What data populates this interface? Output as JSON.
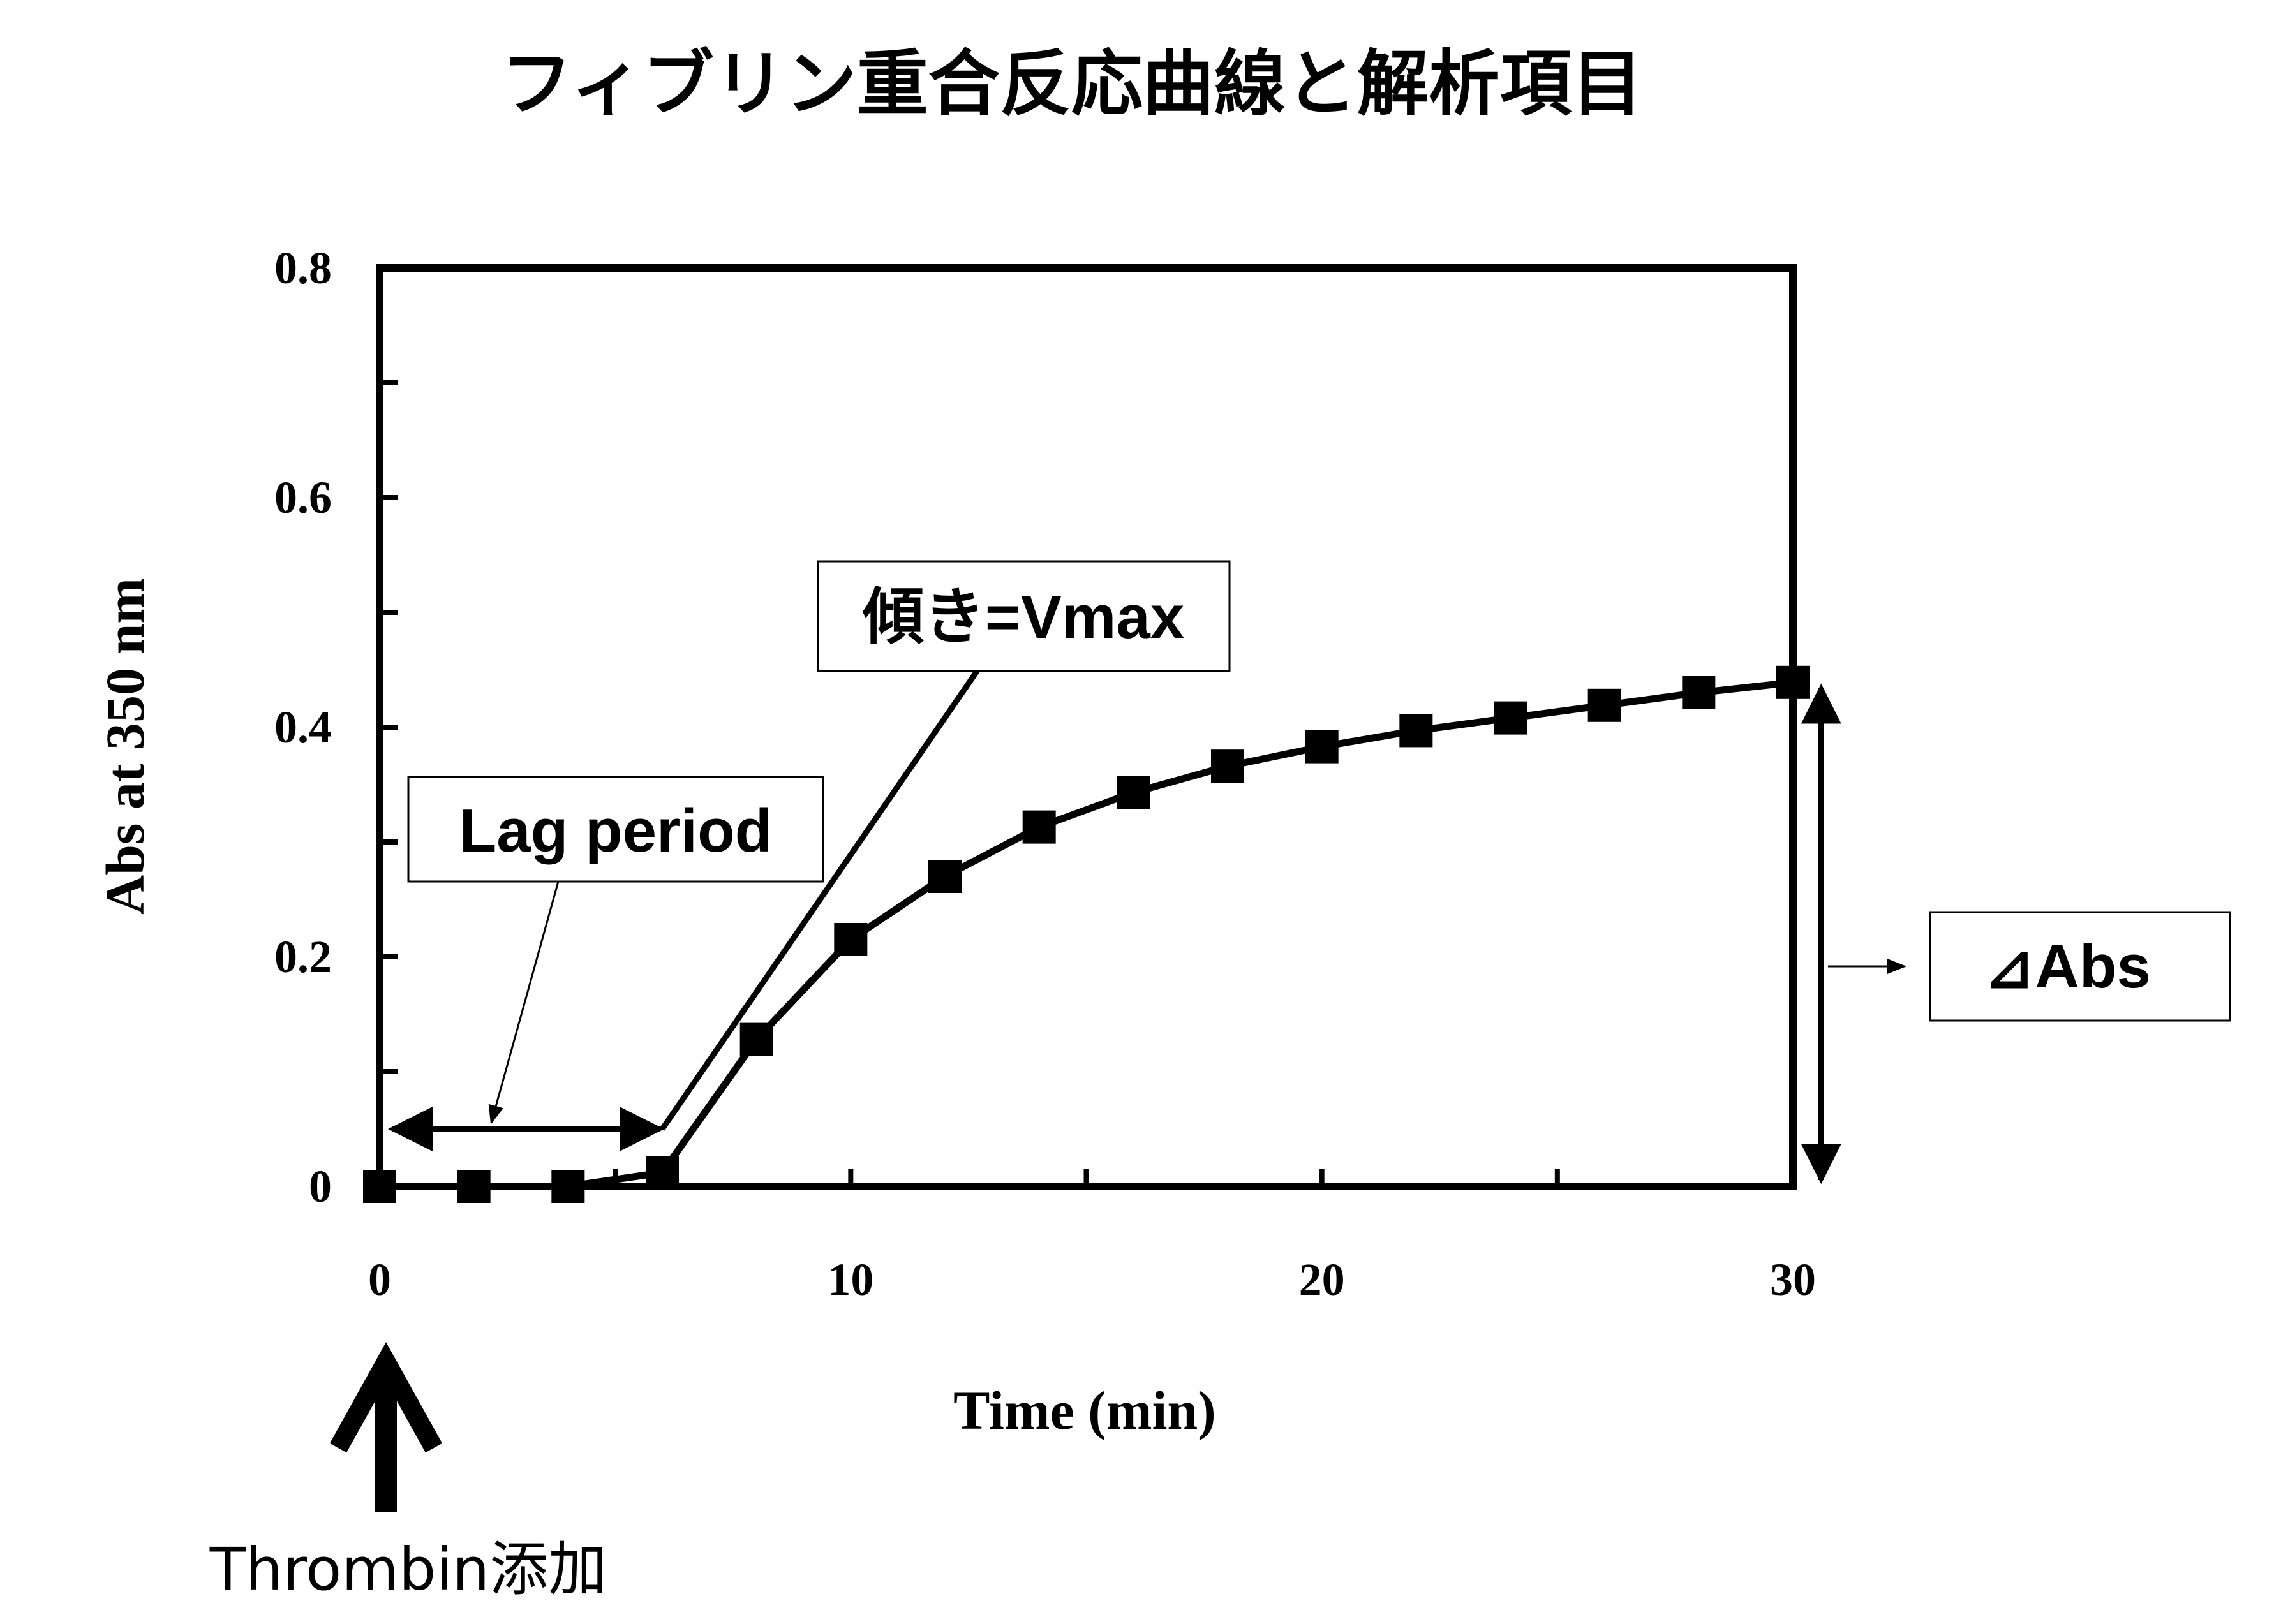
{
  "chart_data": {
    "type": "line",
    "title": "フィブリン重合反応曲線と解析項目",
    "xlabel": "Time (min)",
    "ylabel": "Abs at 350 nm",
    "xlim": [
      0,
      30
    ],
    "ylim": [
      0,
      0.8
    ],
    "xticks": [
      0,
      10,
      20,
      30
    ],
    "xtick_labels": [
      "0",
      "10",
      "20",
      "30"
    ],
    "yticks": [
      0,
      0.2,
      0.4,
      0.6,
      0.8
    ],
    "ytick_labels": [
      "0",
      "0.2",
      "0.4",
      "0.6",
      "0.8"
    ],
    "grid": false,
    "series": [
      {
        "marker": "square",
        "color": "#000000",
        "x": [
          0,
          2,
          4,
          6,
          8,
          10,
          12,
          14,
          16,
          18,
          20,
          22,
          24,
          26,
          28,
          30
        ],
        "y": [
          0,
          0,
          0,
          0.012,
          0.128,
          0.215,
          0.27,
          0.313,
          0.343,
          0.366,
          0.383,
          0.397,
          0.408,
          0.419,
          0.43,
          0.439
        ]
      }
    ],
    "annotations": {
      "lag_period": {
        "label": "Lag period",
        "x_start": 0,
        "x_end": 6,
        "y": 0.05
      },
      "slope": {
        "label": "傾き=Vmax",
        "x_start": 6,
        "y_start": 0.05,
        "x_end": 12.7,
        "y_end": 0.45
      },
      "delta_abs": {
        "label": "⊿Abs",
        "x": 30.6,
        "y_start": 0,
        "y_end": 0.44
      },
      "thrombin": {
        "label": "Thrombin添加",
        "x": 0
      }
    }
  }
}
